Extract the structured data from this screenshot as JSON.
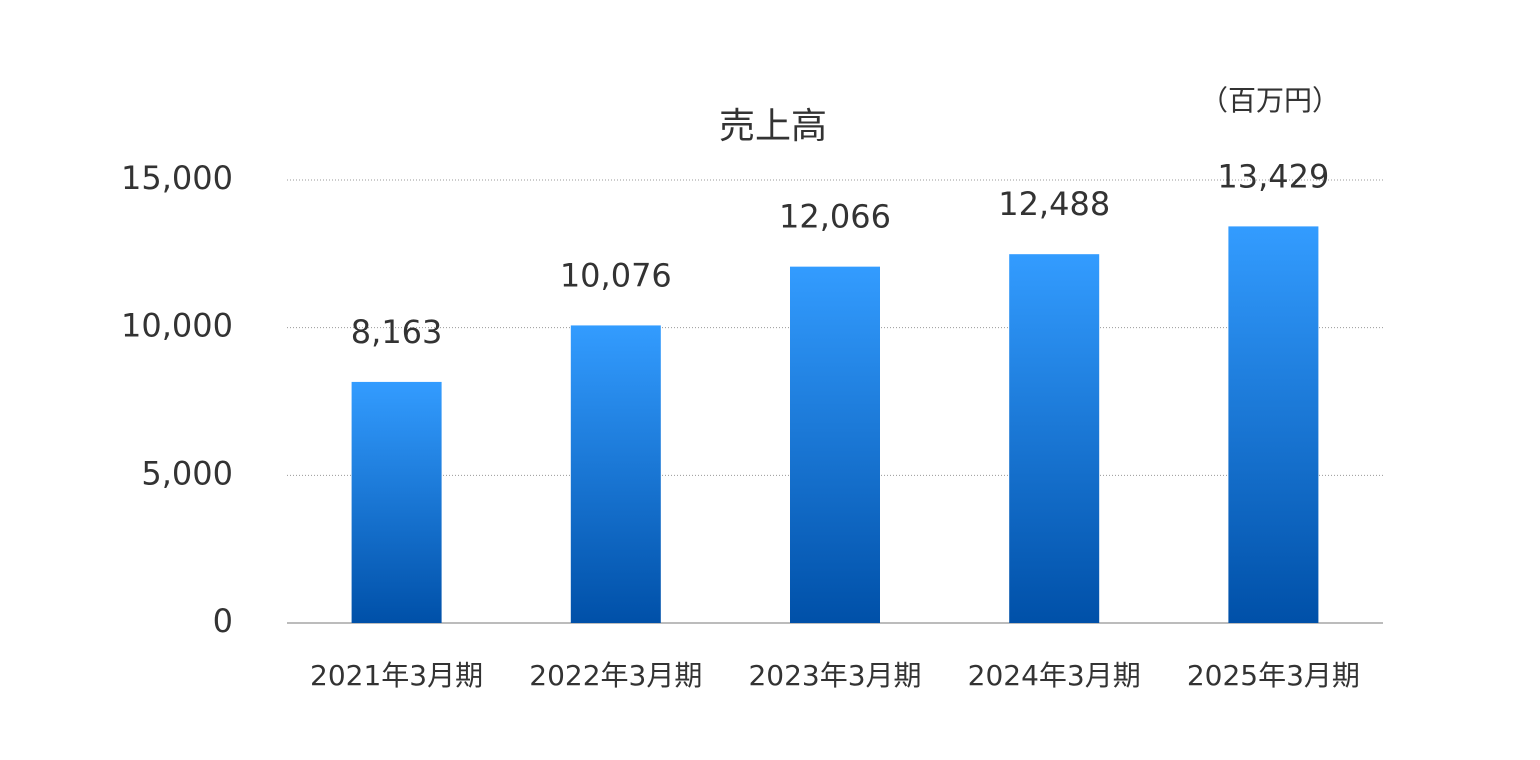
{
  "chart_data": {
    "type": "bar",
    "title": "売上高",
    "unit": "（百万円）",
    "categories": [
      "2021年3月期",
      "2022年3月期",
      "2023年3月期",
      "2024年3月期",
      "2025年3月期"
    ],
    "values": [
      8163,
      10076,
      12066,
      12488,
      13429
    ],
    "value_labels": [
      "8,163",
      "10,076",
      "12,066",
      "12,488",
      "13,429"
    ],
    "color": "#1a78e0",
    "ylim": [
      0,
      15000
    ],
    "yticks": [
      0,
      {
        "value": 5000,
        "label": "5,000"
      },
      {
        "value": 10000,
        "label": "10,000"
      },
      {
        "value": 15000,
        "label": "15,000"
      }
    ],
    "grid": true
  }
}
